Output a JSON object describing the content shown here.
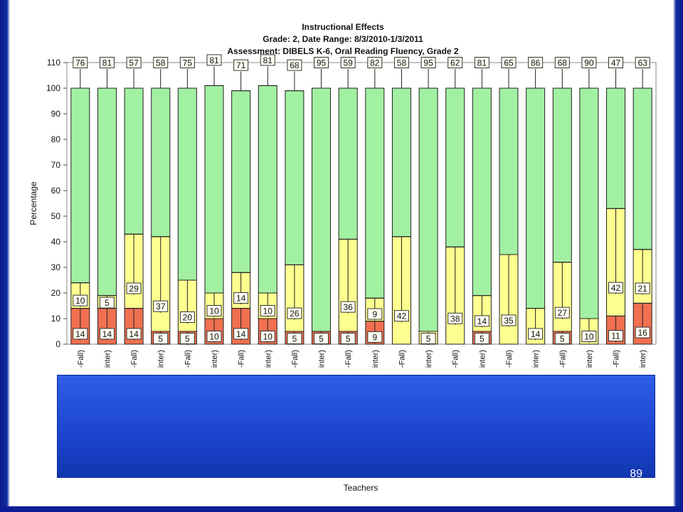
{
  "slide": {
    "number": "89"
  },
  "colors": {
    "red": "#f07050",
    "yellow": "#ffff90",
    "green": "#a2f0a2",
    "overlay": "#1c45d0"
  },
  "chart_data": {
    "type": "bar",
    "stacked": true,
    "title": "Instructional Effects",
    "subtitle": [
      "Grade: 2, Date Range: 8/3/2010-1/3/2011",
      "Assessment: DIBELS K-6, Oral Reading Fluency, Grade 2"
    ],
    "xlabel": "Teachers",
    "ylabel": "Percentage",
    "ylim": [
      0,
      110
    ],
    "yticks": [
      0,
      10,
      20,
      30,
      40,
      50,
      60,
      70,
      80,
      90,
      100,
      110
    ],
    "grid": false,
    "categories": [
      "-Fall)",
      "inter)",
      "-Fall)",
      "inter)",
      "-Fall)",
      "inter)",
      "-Fall)",
      "inter)",
      "-Fall)",
      "inter)",
      "-Fall)",
      "inter)",
      "-Fall)",
      "inter)",
      "-Fall)",
      "inter)",
      "-Fall)",
      "inter)",
      "-Fall)",
      "inter)",
      "-Fall)",
      "inter)"
    ],
    "series": [
      {
        "color": "#f07050",
        "values": [
          14,
          14,
          14,
          5,
          5,
          10,
          14,
          10,
          5,
          5,
          5,
          9,
          0,
          0,
          0,
          5,
          0,
          0,
          5,
          0,
          11,
          16
        ],
        "labels": [
          "14",
          "14",
          "14",
          "5",
          "5",
          "10",
          "14",
          "10",
          "5",
          "5",
          "5",
          "9",
          "",
          "",
          "",
          "5",
          "",
          "",
          "5",
          "",
          "11",
          "16"
        ]
      },
      {
        "color": "#ffff90",
        "values": [
          10,
          5,
          29,
          37,
          20,
          10,
          14,
          10,
          26,
          0,
          36,
          9,
          42,
          5,
          38,
          14,
          35,
          14,
          27,
          10,
          42,
          21
        ],
        "labels": [
          "10",
          "5",
          "29",
          "37",
          "20",
          "10",
          "14",
          "10",
          "26",
          "",
          "36",
          "9",
          "42",
          "5",
          "38",
          "14",
          "35",
          "14",
          "27",
          "10",
          "42",
          "21"
        ]
      },
      {
        "color": "#a2f0a2",
        "values": [
          76,
          81,
          57,
          58,
          75,
          81,
          71,
          81,
          68,
          95,
          59,
          82,
          58,
          95,
          62,
          81,
          65,
          86,
          68,
          90,
          47,
          63
        ],
        "labels": [
          "76",
          "81",
          "57",
          "58",
          "75",
          "81",
          "71",
          "81",
          "68",
          "95",
          "59",
          "82",
          "58",
          "95",
          "62",
          "81",
          "65",
          "86",
          "68",
          "90",
          "47",
          "63"
        ]
      }
    ]
  }
}
